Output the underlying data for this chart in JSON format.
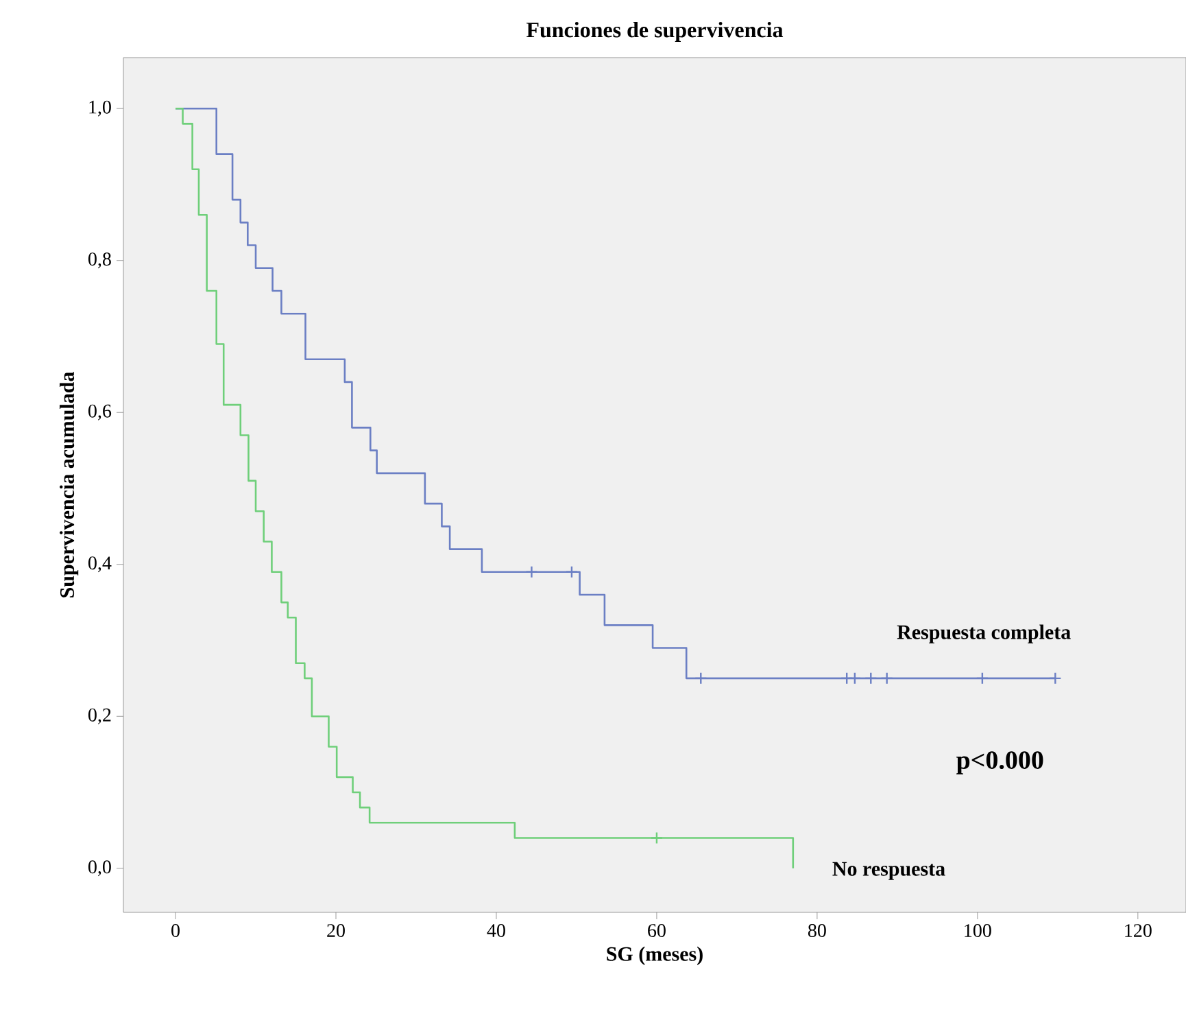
{
  "chart_data": {
    "type": "step",
    "title": "Funciones de supervivencia",
    "xlabel": "SG (meses)",
    "ylabel": "Supervivencia acumulada",
    "xlim": [
      -6.5,
      126
    ],
    "ylim": [
      -0.058,
      1.067
    ],
    "xticks": [
      0,
      20,
      40,
      60,
      80,
      100,
      120
    ],
    "yticks": [
      {
        "value": 0,
        "label": "0,0"
      },
      {
        "value": 0.2,
        "label": "0,2"
      },
      {
        "value": 0.4,
        "label": "0,4"
      },
      {
        "value": 0.6,
        "label": "0,6"
      },
      {
        "value": 0.8,
        "label": "0,8"
      },
      {
        "value": 1.0,
        "label": "1,0"
      }
    ],
    "series": [
      {
        "name": "Respuesta completa",
        "color": "#6b7fc4",
        "x": [
          0,
          5.1,
          7.1,
          8.1,
          9.0,
          10.0,
          12.1,
          13.2,
          16.2,
          21.1,
          22.0,
          24.3,
          25.1,
          31.1,
          33.2,
          34.2,
          38.2,
          50.4,
          53.5,
          59.5,
          63.7,
          109.7
        ],
        "values": [
          1,
          0.94,
          0.88,
          0.85,
          0.82,
          0.79,
          0.76,
          0.73,
          0.67,
          0.64,
          0.58,
          0.55,
          0.52,
          0.48,
          0.45,
          0.42,
          0.39,
          0.36,
          0.32,
          0.29,
          0.25,
          0.25
        ]
      },
      {
        "name": "No respuesta",
        "color": "#6fcf7a",
        "x": [
          0,
          0.9,
          2.1,
          2.9,
          3.9,
          5.1,
          6.0,
          8.1,
          9.1,
          10.0,
          11.0,
          12.0,
          13.2,
          14.0,
          15.0,
          16.1,
          17.0,
          19.1,
          20.1,
          22.1,
          23.0,
          24.2,
          42.3,
          77
        ],
        "values": [
          1,
          0.98,
          0.92,
          0.86,
          0.76,
          0.69,
          0.61,
          0.57,
          0.51,
          0.47,
          0.43,
          0.39,
          0.35,
          0.33,
          0.27,
          0.25,
          0.2,
          0.16,
          0.12,
          0.1,
          0.08,
          0.06,
          0.04,
          0
        ]
      },
      {
        "type": "scatter",
        "marker": "cross",
        "color": "#6b7fc4",
        "x": [
          44.4,
          49.4,
          65.5,
          83.7,
          84.7,
          86.7,
          88.7,
          100.6,
          109.7
        ],
        "values": [
          0.39,
          0.39,
          0.25,
          0.25,
          0.25,
          0.25,
          0.25,
          0.25,
          0.25
        ]
      },
      {
        "type": "scatter",
        "marker": "cross",
        "color": "#6fcf7a",
        "x": [
          60
        ],
        "values": [
          0.04
        ]
      }
    ],
    "annotations": [
      "p<0.000"
    ]
  }
}
